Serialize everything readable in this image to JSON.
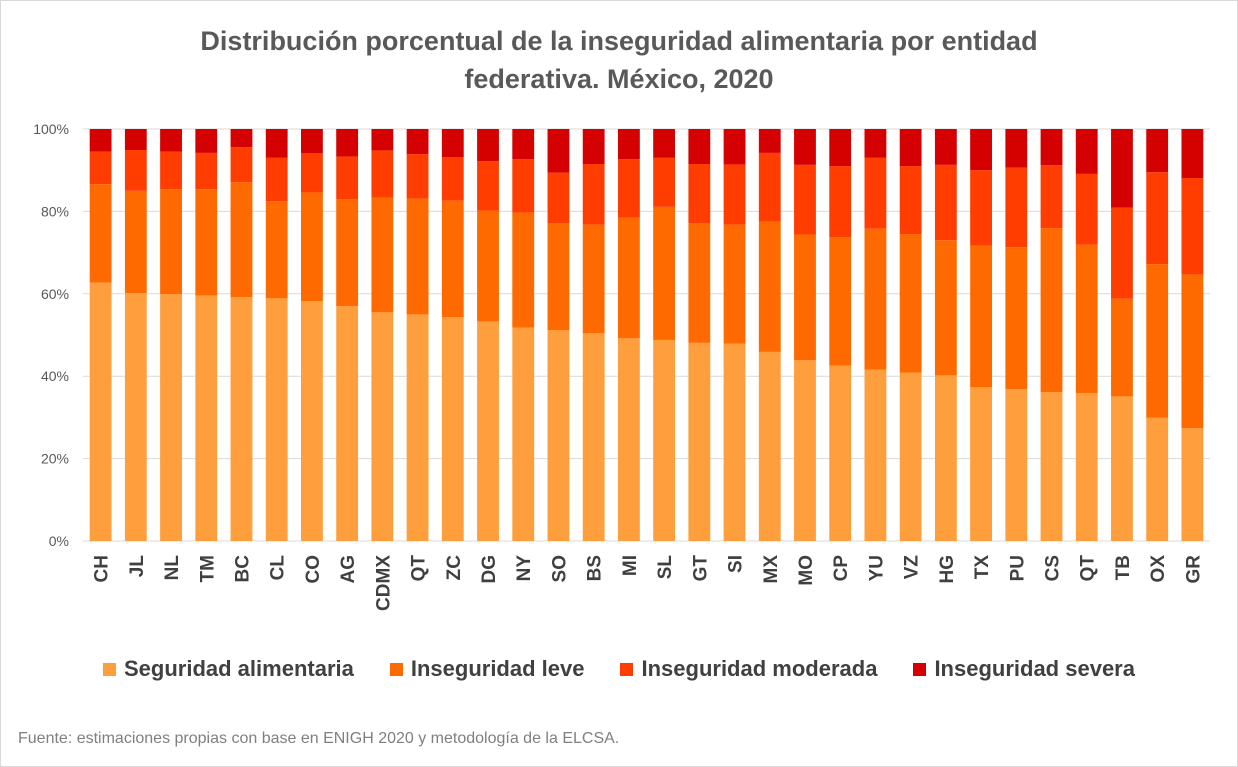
{
  "colors": {
    "seguridad": "#FF9E3D",
    "leve": "#FF6A00",
    "moderada": "#FF3D00",
    "severa": "#D50000",
    "grid": "#d9d9d9",
    "title": "#595959"
  },
  "chart_data": {
    "type": "bar",
    "stacked": true,
    "normalized": true,
    "title": "Distribución porcentual de la inseguridad alimentaria por entidad federativa. México, 2020",
    "title_lines": [
      "Distribución porcentual de la inseguridad alimentaria por entidad",
      "federativa. México, 2020"
    ],
    "xlabel": "",
    "ylabel": "",
    "ylim": [
      0,
      100
    ],
    "y_ticks": [
      "0%",
      "20%",
      "40%",
      "60%",
      "80%",
      "100%"
    ],
    "grid": true,
    "legend_position": "bottom",
    "categories": [
      "CH",
      "JL",
      "NL",
      "TM",
      "BC",
      "CL",
      "CO",
      "AG",
      "CDMX",
      "QT",
      "ZC",
      "DG",
      "NY",
      "SO",
      "BS",
      "MI",
      "SL",
      "GT",
      "SI",
      "MX",
      "MO",
      "CP",
      "YU",
      "VZ",
      "HG",
      "TX",
      "PU",
      "CS",
      "QT",
      "TB",
      "OX",
      "GR"
    ],
    "series": [
      {
        "name": "Seguridad alimentaria",
        "color": "#FF9E3D",
        "values": [
          62.7,
          60.2,
          59.9,
          59.6,
          59.2,
          58.9,
          58.2,
          57.0,
          55.5,
          55.0,
          54.3,
          53.3,
          51.8,
          51.2,
          50.4,
          49.2,
          48.8,
          48.1,
          47.9,
          45.9,
          43.9,
          42.6,
          41.6,
          40.9,
          40.2,
          37.3,
          36.9,
          36.1,
          35.9,
          35.1,
          29.9,
          27.4
        ]
      },
      {
        "name": "Inseguridad leve",
        "color": "#FF6A00",
        "values": [
          23.9,
          24.8,
          25.5,
          25.8,
          27.9,
          23.6,
          26.4,
          26.0,
          27.8,
          28.1,
          28.3,
          26.9,
          27.9,
          25.9,
          26.4,
          29.3,
          32.3,
          29.0,
          28.9,
          31.6,
          30.5,
          31.1,
          34.2,
          33.6,
          32.8,
          34.4,
          34.4,
          39.8,
          36.0,
          23.7,
          37.3,
          37.3
        ]
      },
      {
        "name": "Inseguridad moderada",
        "color": "#FF3D00",
        "values": [
          7.9,
          9.9,
          9.1,
          8.8,
          8.5,
          10.5,
          9.5,
          10.3,
          11.5,
          10.8,
          10.6,
          12.0,
          13.0,
          12.3,
          14.7,
          14.2,
          11.9,
          14.4,
          14.6,
          16.7,
          16.9,
          17.3,
          17.2,
          16.5,
          18.3,
          18.3,
          19.3,
          15.3,
          17.2,
          22.1,
          22.3,
          23.4
        ]
      },
      {
        "name": "Inseguridad severa",
        "color": "#D50000",
        "values": [
          5.5,
          5.1,
          5.5,
          5.8,
          4.4,
          7.0,
          5.9,
          6.7,
          5.2,
          6.1,
          6.8,
          7.8,
          7.3,
          10.6,
          8.5,
          7.3,
          7.0,
          8.5,
          8.6,
          5.8,
          8.7,
          9.0,
          7.0,
          9.0,
          8.7,
          10.0,
          9.4,
          8.8,
          10.9,
          19.1,
          10.5,
          11.9
        ]
      }
    ],
    "source": "Fuente: estimaciones propias con base en ENIGH 2020 y metodología de la ELCSA."
  }
}
